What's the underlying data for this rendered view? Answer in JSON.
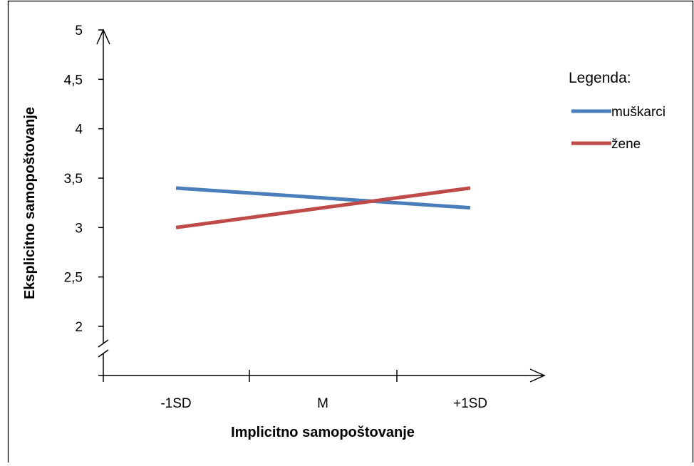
{
  "chart_data": {
    "type": "line",
    "categories": [
      "-1SD",
      "M",
      "+1SD"
    ],
    "series": [
      {
        "name": "muškarci",
        "values": [
          3.4,
          3.3,
          3.2
        ],
        "color": "#4a7ebb"
      },
      {
        "name": "žene",
        "values": [
          3.0,
          3.2,
          3.4
        ],
        "color": "#be4b48"
      }
    ],
    "xlabel": "Implicitno samopoštovanje",
    "ylabel": "Eksplicitno samopoštovanje",
    "yticks": [
      "5",
      "4,5",
      "4",
      "3,5",
      "3",
      "2,5",
      "2"
    ],
    "ytick_values": [
      5,
      4.5,
      4,
      3.5,
      3,
      2.5,
      2
    ],
    "ylim": [
      2,
      5
    ],
    "y_axis_break": true,
    "grid": false,
    "legend_title": "Legenda:",
    "legend_position": "right"
  }
}
